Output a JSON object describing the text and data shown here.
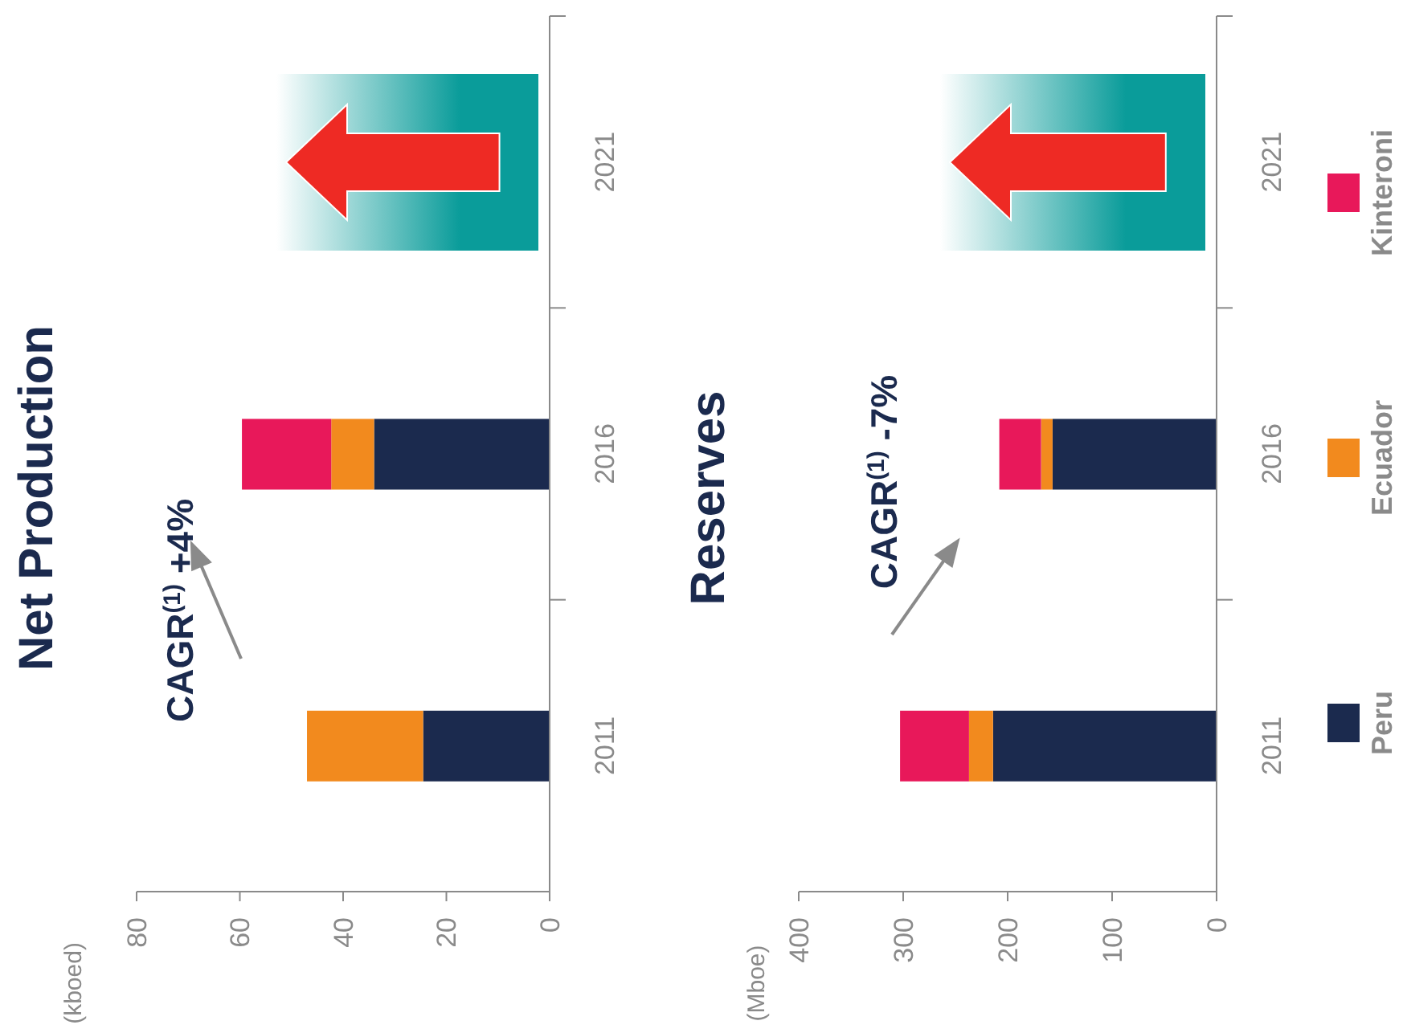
{
  "chart_data": [
    {
      "type": "bar",
      "title": "Net Production",
      "categories": [
        "2021",
        "2016",
        "2011"
      ],
      "orientation": "horizontal",
      "stacked": true,
      "xlim": [
        80,
        0
      ],
      "xticks": [
        0,
        20,
        40,
        60,
        80
      ],
      "annotations": [
        "CAGR$^{(1)}$ +4%",
        "(kboed)"
      ],
      "series": [
        {
          "color": "#1b2a4e",
          "values": [
            null,
            34,
            24.5
          ]
        },
        {
          "color": "#f28a1e",
          "values": [
            null,
            8.3,
            22.5
          ]
        },
        {
          "color": "#e8185a",
          "values": [
            null,
            17.3,
            null
          ]
        }
      ]
    },
    {
      "type": "bar",
      "title": "Reserves",
      "categories": [
        "2021",
        "2016",
        "2011"
      ],
      "orientation": "horizontal",
      "stacked": true,
      "xlim": [
        400,
        0
      ],
      "xticks": [
        0,
        100,
        200,
        300,
        400
      ],
      "annotations": [
        "CAGR$^{(1)}$ -7%",
        "(Mboe)"
      ],
      "legend": "right",
      "series": [
        {
          "name": "Peru",
          "color": "#1b2a4e",
          "values": [
            null,
            157,
            214
          ]
        },
        {
          "name": "Ecuador",
          "color": "#f28a1e",
          "values": [
            null,
            11,
            23
          ]
        },
        {
          "name": "Kinteroni",
          "color": "#e8185a",
          "values": [
            null,
            40,
            66
          ]
        }
      ]
    }
  ]
}
